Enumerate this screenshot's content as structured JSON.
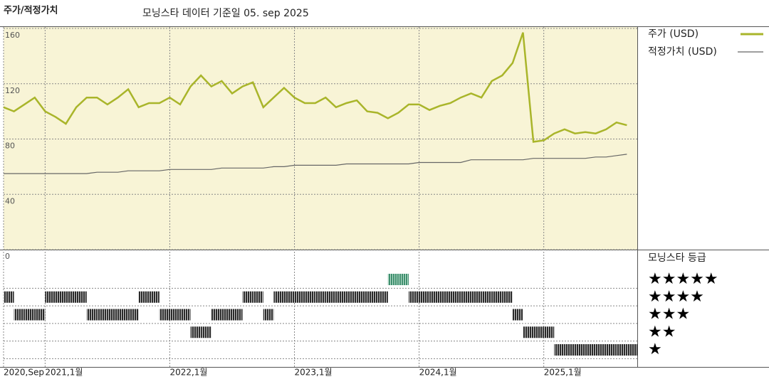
{
  "chart_data": [
    {
      "type": "line",
      "title": "주가/적정가치",
      "subtitle": "모닝스타 데이터 기준일 05. sep 2025",
      "x": [
        "2020-09",
        "2020-10",
        "2020-11",
        "2020-12",
        "2021-01",
        "2021-02",
        "2021-03",
        "2021-04",
        "2021-05",
        "2021-06",
        "2021-07",
        "2021-08",
        "2021-09",
        "2021-10",
        "2021-11",
        "2021-12",
        "2022-01",
        "2022-02",
        "2022-03",
        "2022-04",
        "2022-05",
        "2022-06",
        "2022-07",
        "2022-08",
        "2022-09",
        "2022-10",
        "2022-11",
        "2022-12",
        "2023-01",
        "2023-02",
        "2023-03",
        "2023-04",
        "2023-05",
        "2023-06",
        "2023-07",
        "2023-08",
        "2023-09",
        "2023-10",
        "2023-11",
        "2023-12",
        "2024-01",
        "2024-02",
        "2024-03",
        "2024-04",
        "2024-05",
        "2024-06",
        "2024-07",
        "2024-08",
        "2024-09",
        "2024-10",
        "2024-11",
        "2024-12",
        "2025-01",
        "2025-02",
        "2025-03",
        "2025-04",
        "2025-05",
        "2025-06",
        "2025-07",
        "2025-08",
        "2025-09"
      ],
      "series": [
        {
          "name": "주가 (USD)",
          "color": "#a9b52a",
          "values": [
            103,
            100,
            105,
            110,
            100,
            96,
            91,
            103,
            110,
            110,
            105,
            110,
            116,
            103,
            106,
            106,
            110,
            105,
            118,
            126,
            118,
            122,
            113,
            118,
            121,
            103,
            110,
            117,
            110,
            106,
            106,
            110,
            103,
            106,
            108,
            100,
            99,
            95,
            99,
            105,
            105,
            101,
            104,
            106,
            110,
            113,
            110,
            122,
            126,
            135,
            157,
            78,
            79,
            84,
            87,
            84,
            85,
            84,
            87,
            92,
            90
          ]
        },
        {
          "name": "적정가치 (USD)",
          "color": "#666666",
          "values": [
            55,
            55,
            55,
            55,
            55,
            55,
            55,
            55,
            55,
            56,
            56,
            56,
            57,
            57,
            57,
            57,
            58,
            58,
            58,
            58,
            58,
            59,
            59,
            59,
            59,
            59,
            60,
            60,
            61,
            61,
            61,
            61,
            61,
            62,
            62,
            62,
            62,
            62,
            62,
            62,
            63,
            63,
            63,
            63,
            63,
            65,
            65,
            65,
            65,
            65,
            65,
            66,
            66,
            66,
            66,
            66,
            66,
            67,
            67,
            68,
            69
          ]
        }
      ],
      "xlim": [
        "2020-09",
        "2025-10"
      ],
      "xticks": [
        {
          "value": "2020-09",
          "label": "2020,Sep"
        },
        {
          "value": "2021-01",
          "label": "2021,1월"
        },
        {
          "value": "2022-01",
          "label": "2022,1월"
        },
        {
          "value": "2023-01",
          "label": "2023,1월"
        },
        {
          "value": "2024-01",
          "label": "2024,1월"
        },
        {
          "value": "2025-01",
          "label": "2025,1월"
        }
      ],
      "ylim": [
        0,
        160
      ],
      "yticks": [
        0,
        40,
        80,
        120,
        160
      ],
      "grid": true,
      "legend": "right"
    },
    {
      "type": "rating",
      "title": "모닝스타 등급",
      "yticks": [
        {
          "value": 5,
          "label": "★★★★★"
        },
        {
          "value": 4,
          "label": "★★★★"
        },
        {
          "value": 3,
          "label": "★★★"
        },
        {
          "value": 2,
          "label": "★★"
        },
        {
          "value": 1,
          "label": "★"
        }
      ],
      "values": [
        4,
        3,
        3,
        3,
        4,
        4,
        4,
        4,
        3,
        3,
        3,
        3,
        3,
        4,
        4,
        3,
        3,
        3,
        2,
        2,
        3,
        3,
        3,
        4,
        4,
        3,
        4,
        4,
        4,
        4,
        4,
        4,
        4,
        4,
        4,
        4,
        4,
        5,
        5,
        4,
        4,
        4,
        4,
        4,
        4,
        4,
        4,
        4,
        4,
        3,
        2,
        2,
        2,
        1,
        1,
        1,
        1,
        1,
        1,
        1,
        1
      ],
      "colors": {
        "5": "#3f8f6e",
        "default": "#2a2a2a"
      }
    }
  ]
}
